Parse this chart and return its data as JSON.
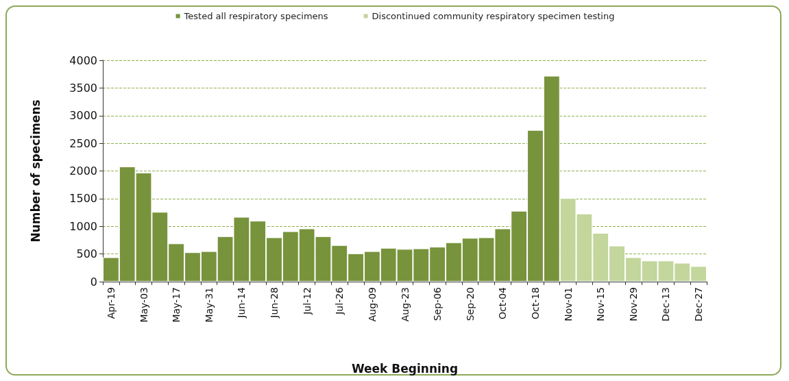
{
  "chart_data": {
    "type": "bar",
    "stacked": true,
    "xlabel": "Week Beginning",
    "ylabel": "Number of specimens",
    "categories": [
      "Apr-19",
      null,
      "May-03",
      null,
      "May-17",
      null,
      "May-31",
      null,
      "Jun-14",
      null,
      "Jun-28",
      null,
      "Jul-12",
      null,
      "Jul-26",
      null,
      "Aug-09",
      null,
      "Aug-23",
      null,
      "Sep-06",
      null,
      "Sep-20",
      null,
      "Oct-04",
      null,
      "Oct-18",
      null,
      "Nov-01",
      null,
      "Nov-15",
      null,
      "Nov-29",
      null,
      "Dec-13",
      null,
      "Dec-27"
    ],
    "series": [
      {
        "name": "Tested all respiratory specimens",
        "color": "#77933c",
        "values": [
          440,
          2080,
          1970,
          1260,
          690,
          530,
          550,
          820,
          1170,
          1100,
          800,
          910,
          960,
          820,
          660,
          510,
          550,
          610,
          590,
          600,
          630,
          710,
          790,
          800,
          960,
          1280,
          2740,
          3720,
          null,
          null,
          null,
          null,
          null,
          null,
          null,
          null,
          null
        ]
      },
      {
        "name": "Discontinued community respiratory specimen testing",
        "color": "#c3d69b",
        "values": [
          null,
          null,
          null,
          null,
          null,
          null,
          null,
          null,
          null,
          null,
          null,
          null,
          null,
          null,
          null,
          null,
          null,
          null,
          null,
          null,
          null,
          null,
          null,
          null,
          null,
          null,
          null,
          null,
          1510,
          1230,
          880,
          650,
          440,
          380,
          380,
          340,
          280
        ]
      }
    ],
    "ylim": [
      0,
      4000
    ],
    "yticks": [
      0,
      500,
      1000,
      1500,
      2000,
      2500,
      3000,
      3500,
      4000
    ],
    "grid": "y",
    "legend": "top"
  }
}
